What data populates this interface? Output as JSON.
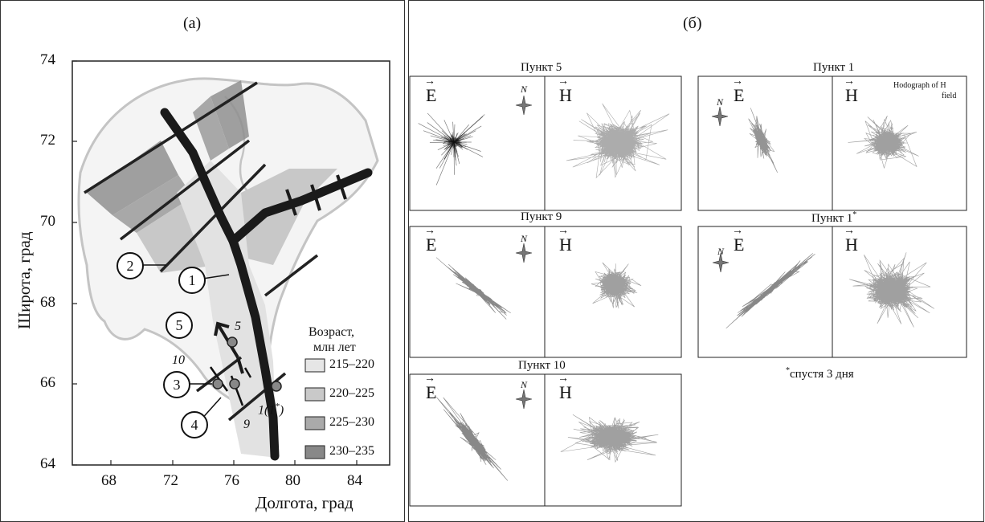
{
  "panel_a": {
    "label": "(a)",
    "y_axis_title": "Широта, град",
    "x_axis_title": "Долгота, град",
    "y_ticks": [
      "74",
      "72",
      "70",
      "68",
      "66",
      "64"
    ],
    "x_ticks": [
      "68",
      "72",
      "76",
      "80",
      "84"
    ],
    "legend": {
      "title_line1": "Возраст,",
      "title_line2": "млн лет",
      "items": [
        {
          "label": "215–220",
          "color": "#e6e6e6"
        },
        {
          "label": "220–225",
          "color": "#c9c9c9"
        },
        {
          "label": "225–230",
          "color": "#aaaaaa"
        },
        {
          "label": "230–235",
          "color": "#888888"
        }
      ]
    },
    "circled": [
      "1",
      "2",
      "3",
      "4",
      "5"
    ],
    "italic_labels": {
      "p5": "5",
      "p10": "10",
      "p9": "9",
      "p1": "1",
      "p1_paren_open": "(",
      "p1_star_num": "1",
      "p1_star": "*",
      "p1_paren_close": ")"
    }
  },
  "panel_b": {
    "label": "(б)",
    "cells": [
      {
        "title": "Пункт 5",
        "e_label": "E",
        "h_label": "H",
        "north": "N"
      },
      {
        "title": "Пункт 1",
        "e_label": "E",
        "h_label": "H",
        "north": "N",
        "hodograph_caption_line1": "Hodograph of H",
        "hodograph_caption_line2": "field"
      },
      {
        "title": "Пункт 9",
        "e_label": "E",
        "h_label": "H",
        "north": "N"
      },
      {
        "title": "Пункт 1",
        "title_sup": "*",
        "e_label": "E",
        "h_label": "H",
        "north": "N"
      },
      {
        "title": "Пункт 10",
        "e_label": "E",
        "h_label": "H",
        "north": "N"
      }
    ],
    "footnote_star": "*",
    "footnote_text": "спустя 3 дня"
  },
  "colors": {
    "frame": "#222222",
    "rift": "#1a1a1a",
    "coast": "#c8c8c8"
  }
}
